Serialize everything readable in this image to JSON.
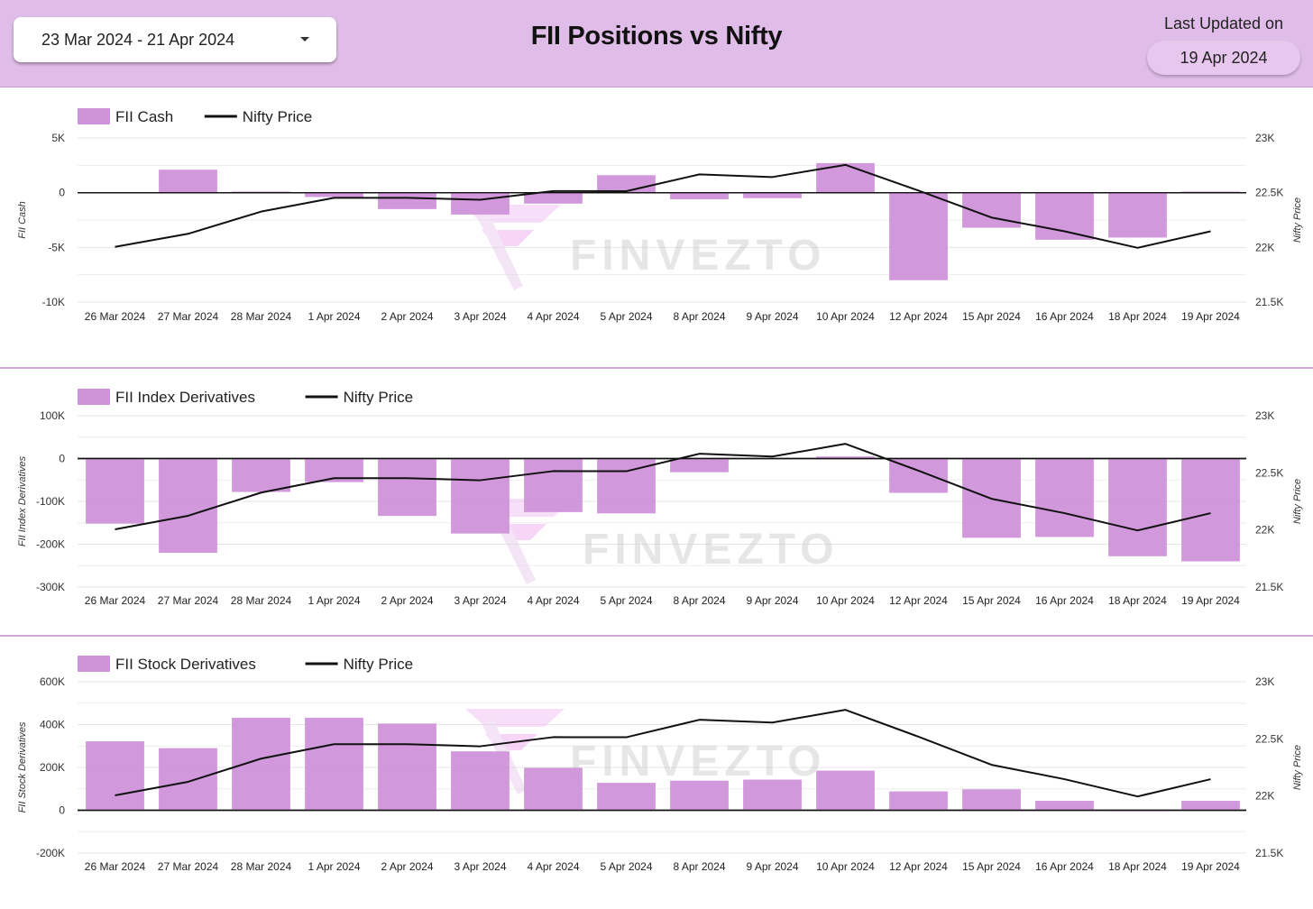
{
  "header": {
    "date_range": "23 Mar 2024 - 21 Apr 2024",
    "title": "FII Positions vs Nifty",
    "last_updated_label": "Last Updated on",
    "last_updated_value": "19 Apr 2024"
  },
  "watermark": "FINVEZTO",
  "colors": {
    "bar": "#cf93d9",
    "line": "#111111",
    "header_bg": "#e0bde8",
    "pill_bg": "#e8c7ee"
  },
  "chart_data": [
    {
      "type": "bar",
      "categories": [
        "26 Mar 2024",
        "27 Mar 2024",
        "28 Mar 2024",
        "1 Apr 2024",
        "2 Apr 2024",
        "3 Apr 2024",
        "4 Apr 2024",
        "5 Apr 2024",
        "8 Apr 2024",
        "9 Apr 2024",
        "10 Apr 2024",
        "12 Apr 2024",
        "15 Apr 2024",
        "16 Apr 2024",
        "18 Apr 2024",
        "19 Apr 2024"
      ],
      "series": [
        {
          "name": "FII Cash",
          "type": "bar",
          "axis": "left",
          "values": [
            0,
            2100,
            100,
            -400,
            -1500,
            -2000,
            -1000,
            1600,
            -600,
            -500,
            2700,
            -8000,
            -3200,
            -4300,
            -4100,
            100
          ]
        },
        {
          "name": "Nifty Price",
          "type": "line",
          "axis": "right",
          "values": [
            22005,
            22124,
            22327,
            22453,
            22453,
            22435,
            22515,
            22514,
            22667,
            22643,
            22754,
            22519,
            22273,
            22147,
            21996,
            22147
          ]
        }
      ],
      "ylabel": "FII Cash",
      "y2label": "Nifty Price",
      "ylim": [
        -10000,
        5000
      ],
      "yticks": [
        5000,
        0,
        -5000,
        -10000
      ],
      "ytick_labels": [
        "5K",
        "0",
        "-5K",
        "-10K"
      ],
      "y2lim": [
        21500,
        23000
      ],
      "y2ticks": [
        23000,
        22500,
        22000,
        21500
      ],
      "y2tick_labels": [
        "23K",
        "22.5K",
        "22K",
        "21.5K"
      ],
      "grid": true,
      "legend": "top-left"
    },
    {
      "type": "bar",
      "categories": [
        "26 Mar 2024",
        "27 Mar 2024",
        "28 Mar 2024",
        "1 Apr 2024",
        "2 Apr 2024",
        "3 Apr 2024",
        "4 Apr 2024",
        "5 Apr 2024",
        "8 Apr 2024",
        "9 Apr 2024",
        "10 Apr 2024",
        "12 Apr 2024",
        "15 Apr 2024",
        "16 Apr 2024",
        "18 Apr 2024",
        "19 Apr 2024"
      ],
      "series": [
        {
          "name": "FII Index Derivatives",
          "type": "bar",
          "axis": "left",
          "values": [
            -152000,
            -220000,
            -78000,
            -55000,
            -134000,
            -175000,
            -125000,
            -128000,
            -32000,
            0,
            5000,
            -80000,
            -185000,
            -183000,
            -228000,
            -240000
          ]
        },
        {
          "name": "Nifty Price",
          "type": "line",
          "axis": "right",
          "values": [
            22005,
            22124,
            22327,
            22453,
            22453,
            22435,
            22515,
            22514,
            22667,
            22643,
            22754,
            22519,
            22273,
            22147,
            21996,
            22147
          ]
        }
      ],
      "ylabel": "FII Index Derivatives",
      "y2label": "Nifty Price",
      "ylim": [
        -300000,
        100000
      ],
      "yticks": [
        100000,
        0,
        -100000,
        -200000,
        -300000
      ],
      "ytick_labels": [
        "100K",
        "0",
        "-100K",
        "-200K",
        "-300K"
      ],
      "y2lim": [
        21500,
        23000
      ],
      "y2ticks": [
        23000,
        22500,
        22000,
        21500
      ],
      "y2tick_labels": [
        "23K",
        "22.5K",
        "22K",
        "21.5K"
      ],
      "grid": true,
      "legend": "top-left"
    },
    {
      "type": "bar",
      "categories": [
        "26 Mar 2024",
        "27 Mar 2024",
        "28 Mar 2024",
        "1 Apr 2024",
        "2 Apr 2024",
        "3 Apr 2024",
        "4 Apr 2024",
        "5 Apr 2024",
        "8 Apr 2024",
        "9 Apr 2024",
        "10 Apr 2024",
        "12 Apr 2024",
        "15 Apr 2024",
        "16 Apr 2024",
        "18 Apr 2024",
        "19 Apr 2024"
      ],
      "series": [
        {
          "name": "FII Stock Derivatives",
          "type": "bar",
          "axis": "left",
          "values": [
            322000,
            290000,
            432000,
            432000,
            405000,
            275000,
            198000,
            128000,
            138000,
            143000,
            185000,
            88000,
            98000,
            44000,
            -5000,
            44000
          ]
        },
        {
          "name": "Nifty Price",
          "type": "line",
          "axis": "right",
          "values": [
            22005,
            22124,
            22327,
            22453,
            22453,
            22435,
            22515,
            22514,
            22667,
            22643,
            22754,
            22519,
            22273,
            22147,
            21996,
            22147
          ]
        }
      ],
      "ylabel": "FII Stock Derivatives",
      "y2label": "Nifty Price",
      "ylim": [
        -200000,
        600000
      ],
      "yticks": [
        600000,
        400000,
        200000,
        0,
        -200000
      ],
      "ytick_labels": [
        "600K",
        "400K",
        "200K",
        "0",
        "-200K"
      ],
      "y2lim": [
        21500,
        23000
      ],
      "y2ticks": [
        23000,
        22500,
        22000,
        21500
      ],
      "y2tick_labels": [
        "23K",
        "22.5K",
        "22K",
        "21.5K"
      ],
      "grid": true,
      "legend": "top-left"
    }
  ]
}
